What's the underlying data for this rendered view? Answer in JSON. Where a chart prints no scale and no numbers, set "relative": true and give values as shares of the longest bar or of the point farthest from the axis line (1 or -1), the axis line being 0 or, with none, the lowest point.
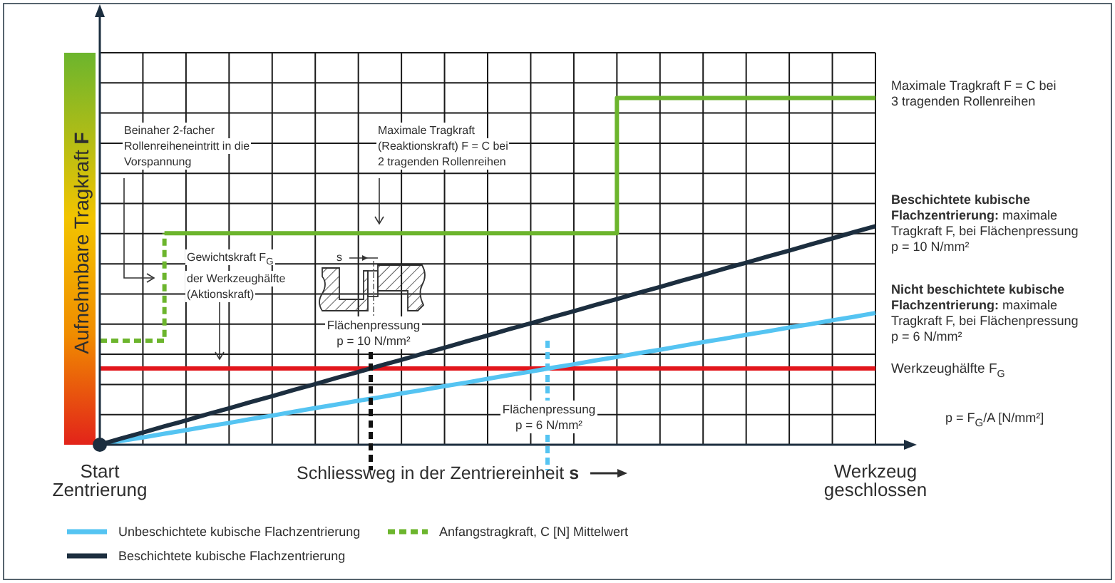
{
  "chart_data": {
    "type": "line",
    "relative": true,
    "xlabel": "Schliessweg in der Zentriereinheit s",
    "ylabel": "Aufnehmbare Tragkraft F",
    "categories": [
      "Start Zentrierung",
      null,
      null,
      null,
      null,
      null,
      null,
      null,
      null,
      null,
      null,
      null,
      null,
      null,
      null,
      null,
      null,
      null,
      null,
      null,
      null,
      null,
      null,
      null,
      null,
      null,
      null,
      null,
      null,
      null,
      null,
      null,
      null,
      null,
      null,
      null,
      "Werkzeug geschlossen"
    ],
    "grid": true,
    "legend": "bottom",
    "series": [
      {
        "name": "Unbeschichtete kubische Flachzentrierung",
        "color": "#55c4f2",
        "values": [
          0,
          0.011,
          0.021,
          0.032,
          0.042,
          0.053,
          0.063,
          0.074,
          0.084,
          0.095,
          0.106,
          0.116,
          0.127,
          0.137,
          0.148,
          0.158,
          0.169,
          0.179,
          0.19,
          0.201,
          0.211,
          0.222,
          0.232,
          0.243,
          0.253,
          0.264,
          0.274,
          0.285,
          0.296,
          0.306,
          0.317,
          0.327,
          0.338,
          0.348,
          0.359,
          0.369,
          0.38
        ]
      },
      {
        "name": "Beschichtete kubische Flachzentrierung",
        "color": "#1c2e3f",
        "values": [
          0,
          0.018,
          0.035,
          0.053,
          0.07,
          0.088,
          0.105,
          0.123,
          0.14,
          0.158,
          0.175,
          0.193,
          0.21,
          0.228,
          0.245,
          0.263,
          0.28,
          0.298,
          0.315,
          0.333,
          0.35,
          0.368,
          0.385,
          0.403,
          0.42,
          0.438,
          0.455,
          0.473,
          0.49,
          0.508,
          0.525,
          0.543,
          0.56,
          0.578,
          0.595,
          0.613,
          0.63
        ]
      },
      {
        "type": "step",
        "color": "#6cb52d",
        "values": [
          null,
          null,
          null,
          0.61,
          0.61,
          0.61,
          0.61,
          0.61,
          0.61,
          0.61,
          0.61,
          0.61,
          0.61,
          0.61,
          0.61,
          0.61,
          0.61,
          0.61,
          0.61,
          0.61,
          0.61,
          0.61,
          0.61,
          0.61,
          1,
          1,
          1,
          1,
          1,
          1,
          1,
          1,
          1,
          1,
          1,
          1,
          1
        ]
      },
      {
        "type": "step",
        "name": "Anfangstragkraft, C [N] Mittelwert",
        "color": "#6cb52d",
        "line_style": "dashed",
        "values": [
          0.3,
          0.3,
          0.3,
          0.61,
          null,
          null,
          null,
          null,
          null,
          null,
          null,
          null,
          null,
          null,
          null,
          null,
          null,
          null,
          null,
          null,
          null,
          null,
          null,
          null,
          null,
          null,
          null,
          null,
          null,
          null,
          null,
          null,
          null,
          null,
          null,
          null,
          null
        ]
      }
    ],
    "ref_lines": [
      {
        "axis": "y",
        "value": 0.22,
        "label": "Werkzeughälfte F$_{G}$",
        "color": "#e2151b"
      }
    ],
    "annotations": [
      "Beinaher 2-facher Rollenreiheneintritt in die Vorspannung",
      "Maximale Tragkraft (Reaktionskraft) F = C bei 2 tragenden Rollenreihen",
      "Gewichtskraft F$_{G}$ der Werkzeughälfte (Aktionskraft)",
      "s",
      "Flächenpressung p = 10 N/mm²",
      "Flächenpressung p = 6 N/mm²",
      "Maximale Tragkraft F = C bei 3 tragenden Rollenreihen",
      "Beschichtete kubische Flachzentrierung: maximale Tragkraft F, bei Flächenpressung p = 10 N/mm²",
      "Nicht beschichtete kubische Flachzentrierung: maximale Tragkraft F, bei Flächenpressung p = 6 N/mm²",
      "p = F$_{G}$/A [N/mm²]"
    ]
  }
}
